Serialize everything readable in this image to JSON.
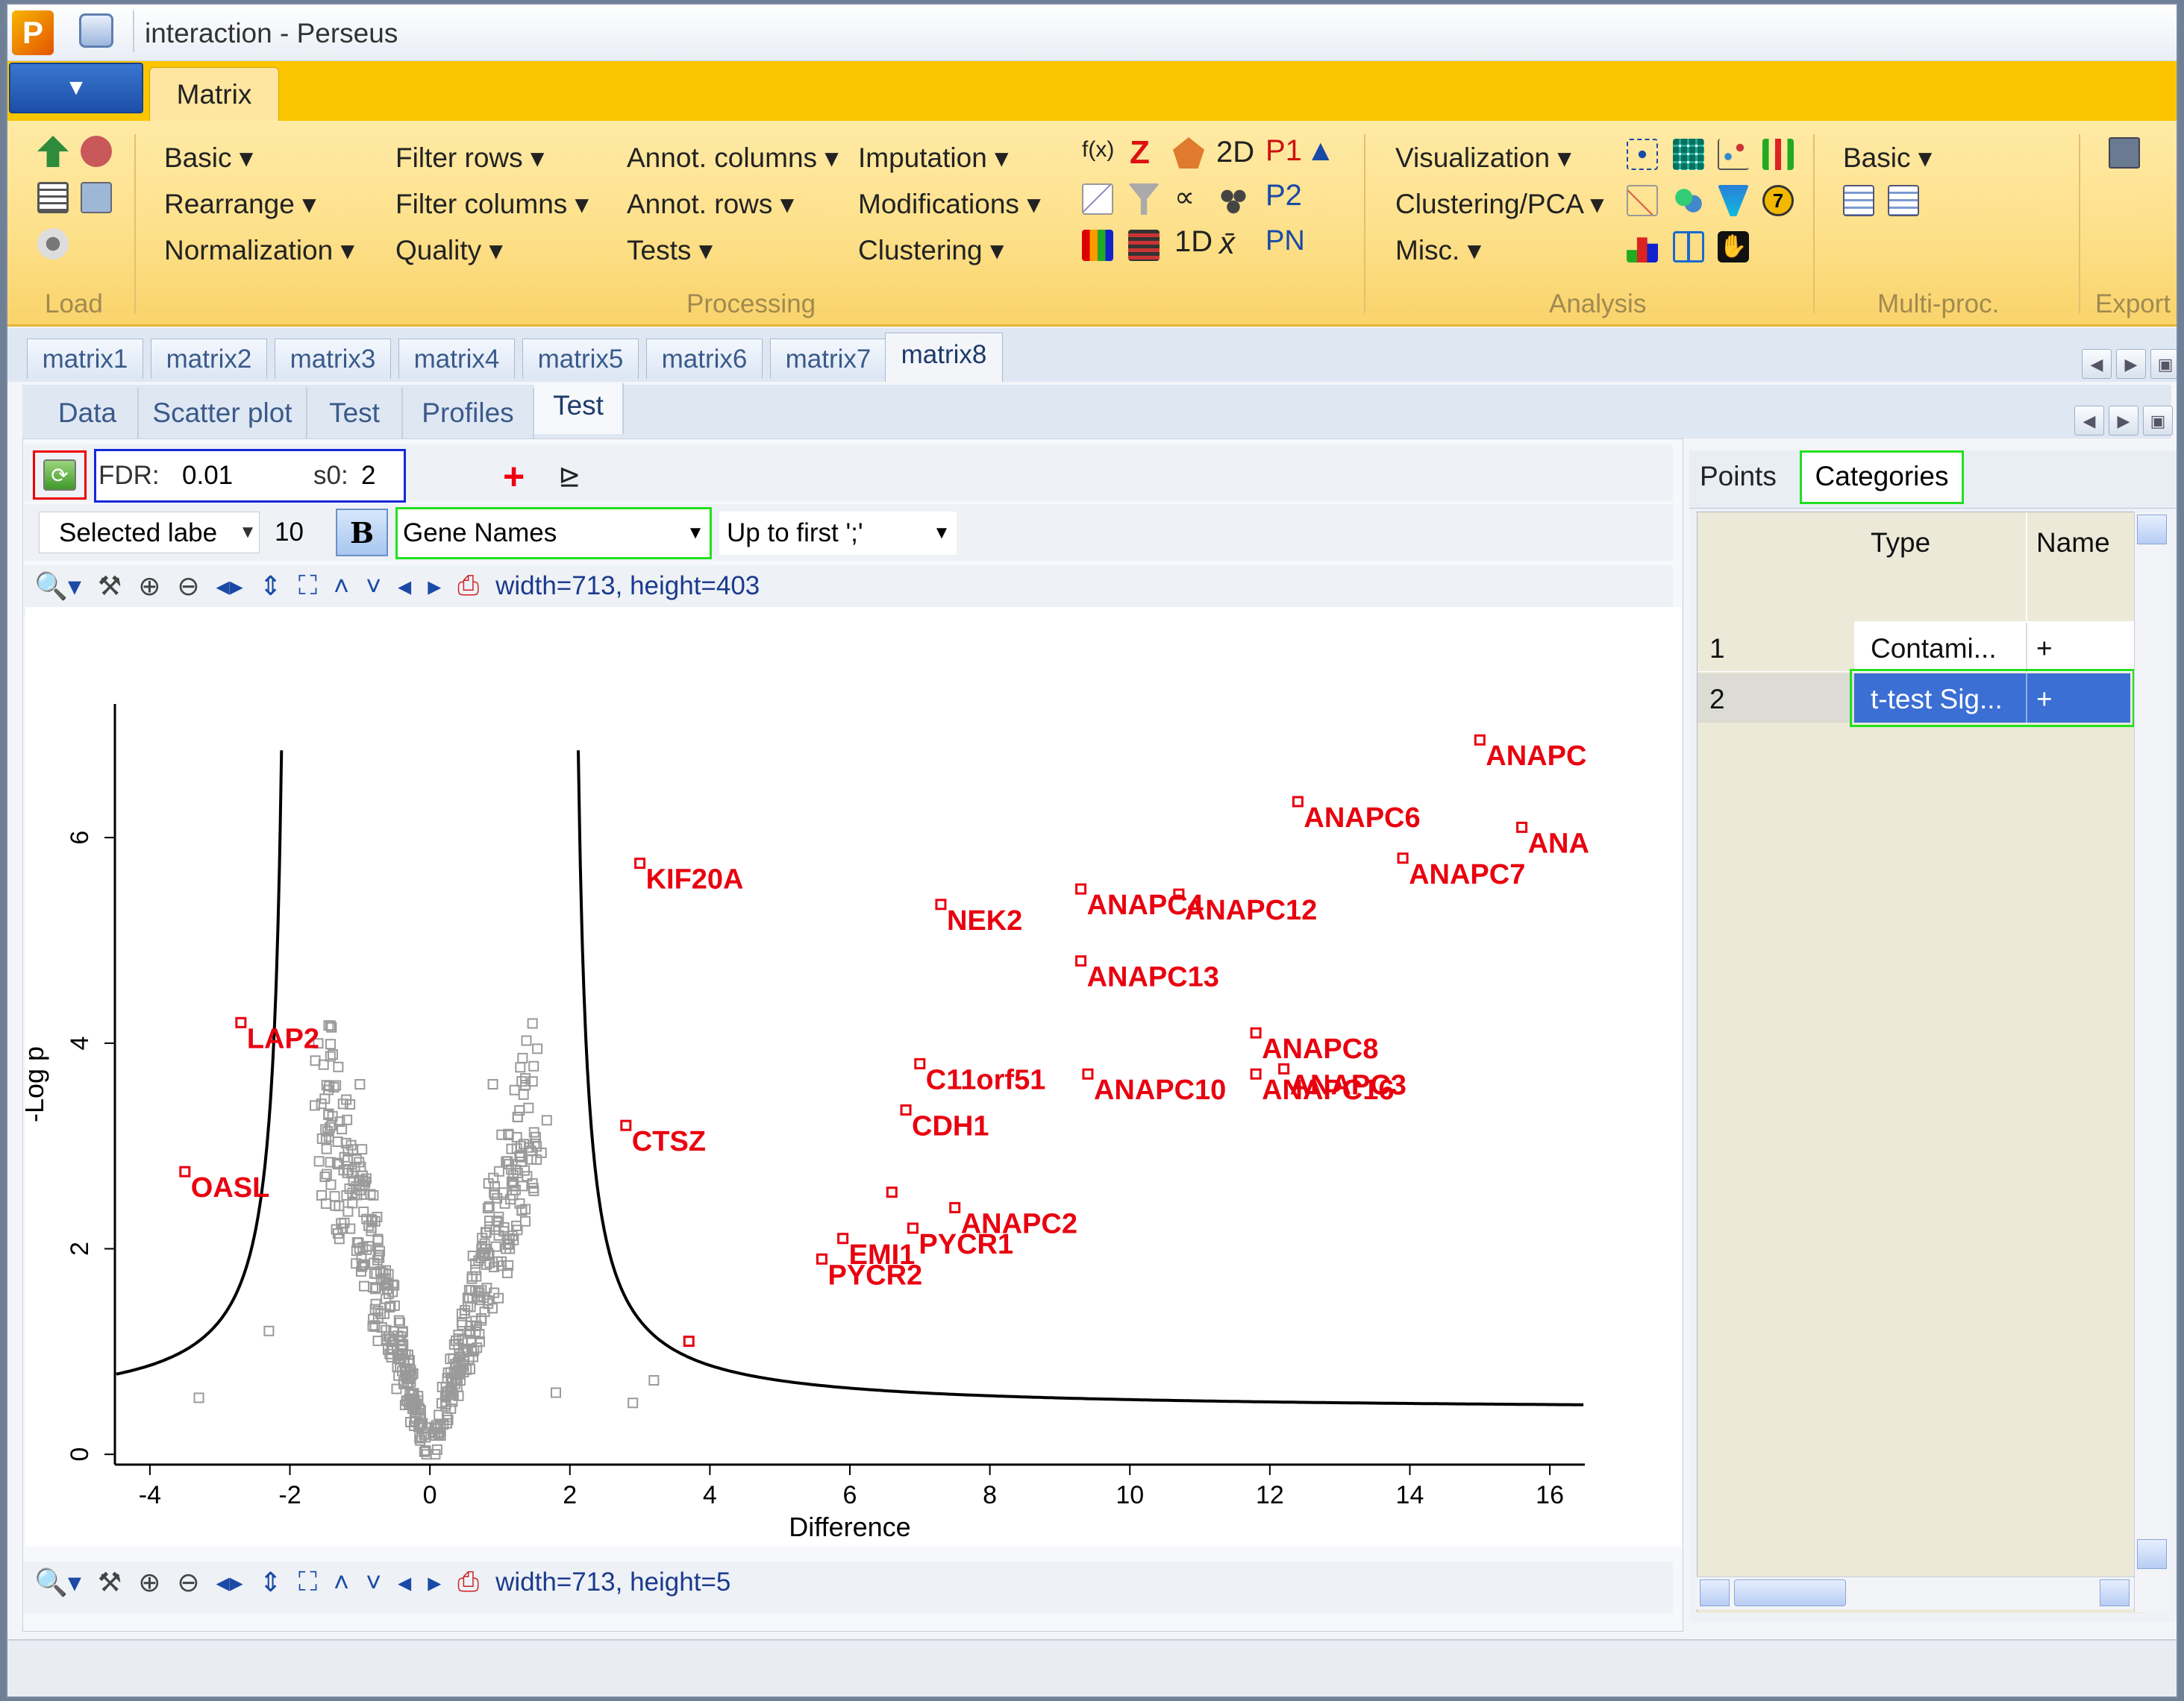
{
  "window": {
    "title": "interaction  -  Perseus",
    "app_icon_letter": "P"
  },
  "ribbon_tab": "Matrix",
  "app_menu_arrow": "▼",
  "ribbon": {
    "load_group": "Load",
    "processing": {
      "col1": [
        "Basic",
        "Rearrange",
        "Normalization"
      ],
      "col2": [
        "Filter rows",
        "Filter columns",
        "Quality"
      ],
      "col3": [
        "Annot. columns",
        "Annot. rows",
        "Tests"
      ],
      "col4": [
        "Imputation",
        "Modifications",
        "Clustering"
      ],
      "group": "Processing"
    },
    "func_icons": [
      "f(x)",
      "Z",
      "",
      "2D",
      "P1",
      "▲",
      "",
      "",
      "",
      "",
      "P2",
      "",
      "",
      "1D",
      "x̄",
      "PN"
    ],
    "analysis": {
      "items": [
        "Visualization",
        "Clustering/PCA",
        "Misc."
      ],
      "group": "Analysis"
    },
    "multiproc": {
      "item": "Basic",
      "group": "Multi-proc."
    },
    "export": {
      "group": "Export"
    }
  },
  "matrix_tabs": [
    "matrix1",
    "matrix2",
    "matrix3",
    "matrix4",
    "matrix5",
    "matrix6",
    "matrix7",
    "matrix8"
  ],
  "selected_matrix": "matrix8",
  "view_tabs": [
    "Data",
    "Scatter plot",
    "Test",
    "Profiles",
    "Test"
  ],
  "selected_view": "Test",
  "test_panel": {
    "fdr_label": "FDR:",
    "fdr_value": "0.01",
    "s0_label": "s0:",
    "s0_value": "2",
    "label_mode": "Selected labe",
    "font_size": "10",
    "bold_label": "B",
    "label_column": "Gene Names",
    "label_mode2": "Up to first ';'",
    "top_size_text": "width=713, height=403",
    "bottom_size_text": "width=713, height=5"
  },
  "right_panel": {
    "tabs": [
      "Points",
      "Categories"
    ],
    "selected_tab": "Categories",
    "columns": [
      "Type",
      "Name"
    ],
    "rows": [
      {
        "index": "1",
        "type": "Contami...",
        "name": "+"
      },
      {
        "index": "2",
        "type": "t-test Sig...",
        "name": "+"
      }
    ]
  },
  "colors": {
    "ribbon_bg": "#fde08a",
    "tab_band": "#fbc500",
    "sig_points": "#e8000f",
    "background_points": "#9a9a9a",
    "selected_row": "#3b6fd4",
    "highlight_green": "#22e01f",
    "highlight_red": "#e00",
    "highlight_blue": "#1428d8"
  },
  "chart_data": {
    "type": "scatter",
    "title": "",
    "xlabel": "Difference",
    "ylabel": "-Log p",
    "xlim": [
      -4.5,
      16.5
    ],
    "ylim": [
      -0.1,
      7.3
    ],
    "x_ticks": [
      "-4",
      "-2",
      "0",
      "2",
      "4",
      "6",
      "8",
      "10",
      "12",
      "14",
      "16"
    ],
    "y_ticks": [
      "0",
      "2",
      "4",
      "6"
    ],
    "significant_points": [
      {
        "label": "ANAPC",
        "x": 15.0,
        "y": 6.95
      },
      {
        "label": "ANAPC6",
        "x": 12.4,
        "y": 6.35
      },
      {
        "label": "ANA",
        "x": 15.6,
        "y": 6.1
      },
      {
        "label": "ANAPC7",
        "x": 13.9,
        "y": 5.8
      },
      {
        "label": "KIF20A",
        "x": 3.0,
        "y": 5.75
      },
      {
        "label": "ANAPC4",
        "x": 9.3,
        "y": 5.5
      },
      {
        "label": "ANAPC12",
        "x": 10.7,
        "y": 5.45
      },
      {
        "label": "NEK2",
        "x": 7.3,
        "y": 5.35
      },
      {
        "label": "ANAPC13",
        "x": 9.3,
        "y": 4.8
      },
      {
        "label": "LAP2",
        "x": -2.7,
        "y": 4.2
      },
      {
        "label": "ANAPC8",
        "x": 11.8,
        "y": 4.1
      },
      {
        "label": "C11orf51",
        "x": 7.0,
        "y": 3.8
      },
      {
        "label": "ANAPC3",
        "x": 12.2,
        "y": 3.75
      },
      {
        "label": "ANAPC10",
        "x": 9.4,
        "y": 3.7
      },
      {
        "label": "ANAPC16",
        "x": 11.8,
        "y": 3.7
      },
      {
        "label": "CDH1",
        "x": 6.8,
        "y": 3.35
      },
      {
        "label": "CTSZ",
        "x": 2.8,
        "y": 3.2
      },
      {
        "label": "OASL",
        "x": -3.5,
        "y": 2.75
      },
      {
        "label": "ANAPC2",
        "x": 7.5,
        "y": 2.4
      },
      {
        "label": "PYCR1",
        "x": 6.9,
        "y": 2.2
      },
      {
        "label": "EMI1",
        "x": 5.9,
        "y": 2.1
      },
      {
        "label": "PYCR2",
        "x": 5.6,
        "y": 1.9
      },
      {
        "label": "",
        "x": 6.6,
        "y": 2.55
      },
      {
        "label": "",
        "x": 3.7,
        "y": 1.1
      }
    ],
    "grey_points_count": 520,
    "threshold_curve": {
      "fdr": 0.01,
      "s0": 2
    }
  }
}
